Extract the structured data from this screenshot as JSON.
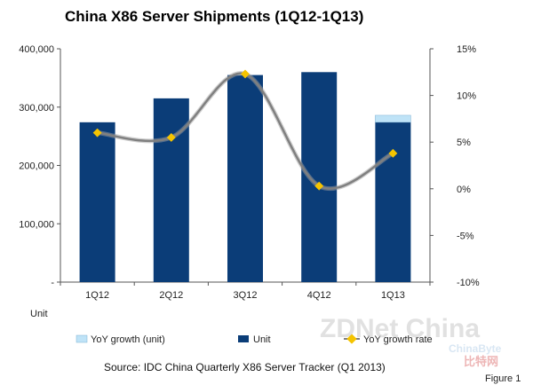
{
  "chart_data": {
    "type": "bar",
    "title": "China X86 Server Shipments (1Q12-1Q13)",
    "categories": [
      "1Q12",
      "2Q12",
      "3Q12",
      "4Q12",
      "1Q13"
    ],
    "series": [
      {
        "name": "Unit",
        "kind": "bar",
        "axis": "left",
        "color": "#0b3d78",
        "values": [
          274000,
          315000,
          355000,
          360000,
          274000
        ]
      },
      {
        "name": "YoY growth (unit)",
        "kind": "bar-stack",
        "axis": "left",
        "color": "#bfe3f7",
        "values": [
          0,
          0,
          0,
          0,
          12000
        ]
      },
      {
        "name": "YoY growth rate",
        "kind": "line",
        "axis": "right",
        "color": "#808080",
        "marker_color": "#f5c400",
        "values": [
          6.0,
          5.5,
          12.3,
          0.3,
          3.8
        ]
      }
    ],
    "y_left": {
      "ylim": [
        0,
        400000
      ],
      "ticks": [
        "-",
        "100,000",
        "200,000",
        "300,000",
        "400,000"
      ],
      "unit_label": "Unit"
    },
    "y_right": {
      "ylim": [
        -10,
        15
      ],
      "ticks": [
        "-10%",
        "-5%",
        "0%",
        "5%",
        "10%",
        "15%"
      ]
    },
    "legend": {
      "placement": "bottom",
      "items": [
        "YoY growth (unit)",
        "Unit",
        "YoY growth rate"
      ]
    },
    "grid": false
  },
  "footer": {
    "source": "Source: IDC China Quarterly X86 Server Tracker (Q1 2013)",
    "figure": "Figure 1"
  },
  "watermark": {
    "main": "ZDNet China",
    "sub1": "ChinaByte",
    "sub2": "比特网"
  }
}
